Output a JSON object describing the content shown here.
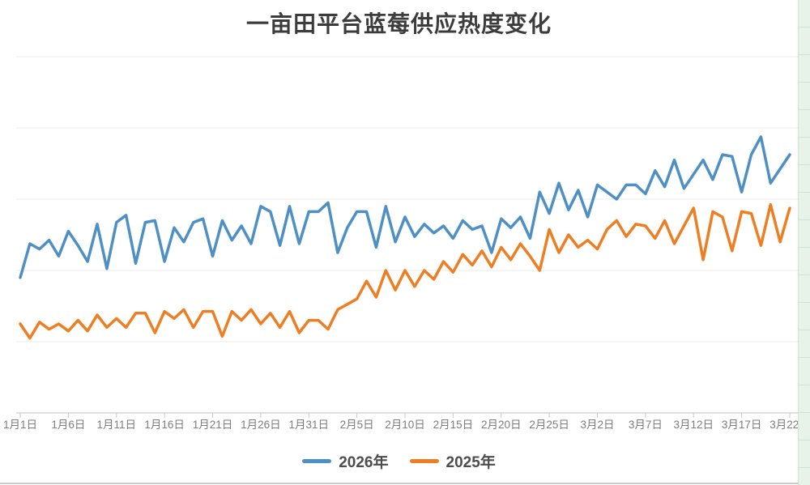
{
  "title": "一亩田平台蓝莓供应热度变化",
  "legend": {
    "items": [
      {
        "label": "2026年",
        "color": "#4e8fc4"
      },
      {
        "label": "2025年",
        "color": "#ee7e23"
      }
    ]
  },
  "chart_data": {
    "type": "line",
    "title": "一亩田平台蓝莓供应热度变化",
    "xlabel": "",
    "ylabel": "",
    "grid": true,
    "legend_position": "bottom",
    "x_axis": {
      "start": "1月1日",
      "end": "3月22日",
      "total_points": 81,
      "tick_labels": [
        "1月1日",
        "1月6日",
        "1月11日",
        "1月16日",
        "1月21日",
        "1月26日",
        "1月31日",
        "2月5日",
        "2月10日",
        "2月15日",
        "2月20日",
        "2月25日",
        "3月2日",
        "3月7日",
        "3月12日",
        "3月17日",
        "3月22日"
      ],
      "tick_days": [
        1,
        6,
        11,
        16,
        21,
        26,
        31,
        36,
        41,
        46,
        51,
        56,
        61,
        66,
        71,
        76,
        81
      ]
    },
    "y_axis": {
      "labels_visible": false,
      "estimated_range": [
        0,
        100
      ],
      "gridline_values": [
        0,
        20,
        40,
        60,
        80,
        100
      ]
    },
    "series": [
      {
        "name": "2026年",
        "color": "#4e8fc4",
        "values": [
          38,
          47.5,
          46,
          48.5,
          44,
          51,
          47,
          42.5,
          53,
          40.5,
          53.5,
          55.5,
          42,
          53.5,
          54,
          42.5,
          52,
          48,
          53.5,
          54.5,
          44,
          54,
          48.5,
          52.5,
          47.5,
          58,
          56.5,
          47,
          58,
          47.5,
          56.5,
          56.5,
          59,
          45,
          52,
          56.5,
          56.5,
          46.5,
          58,
          48,
          55,
          49.5,
          53,
          50.5,
          52.5,
          49,
          54,
          51.5,
          52.5,
          45,
          54.5,
          52,
          55,
          49,
          62,
          56,
          64.5,
          57,
          62.5,
          55,
          64,
          62,
          60,
          64,
          64,
          61.5,
          68,
          63.5,
          71,
          63,
          67,
          71,
          65.5,
          72.5,
          72,
          62,
          72.5,
          77.5,
          64.5,
          68.5,
          72.5
        ]
      },
      {
        "name": "2025年",
        "color": "#ee7e23",
        "values": [
          25,
          21,
          25.5,
          23.5,
          25,
          23,
          26,
          23,
          27.5,
          24,
          26.5,
          24,
          28,
          28,
          22.5,
          28.5,
          26.5,
          29,
          24,
          28.5,
          28.5,
          21.5,
          28.5,
          26,
          29,
          25,
          28,
          24,
          28.5,
          22.5,
          26,
          26,
          23.5,
          29,
          30.5,
          32,
          37,
          32.5,
          40,
          34.5,
          40,
          35.5,
          40,
          37.5,
          42.5,
          39.5,
          44.5,
          41.5,
          45.5,
          41,
          46.5,
          43,
          47.5,
          44,
          40,
          51.5,
          45,
          50,
          46.5,
          48.5,
          46,
          51.5,
          54,
          49.5,
          53,
          52.5,
          49,
          54,
          47.5,
          52.5,
          57.5,
          43,
          56.5,
          55,
          45.5,
          56.5,
          56,
          47,
          58.5,
          48,
          57.5
        ]
      }
    ]
  }
}
